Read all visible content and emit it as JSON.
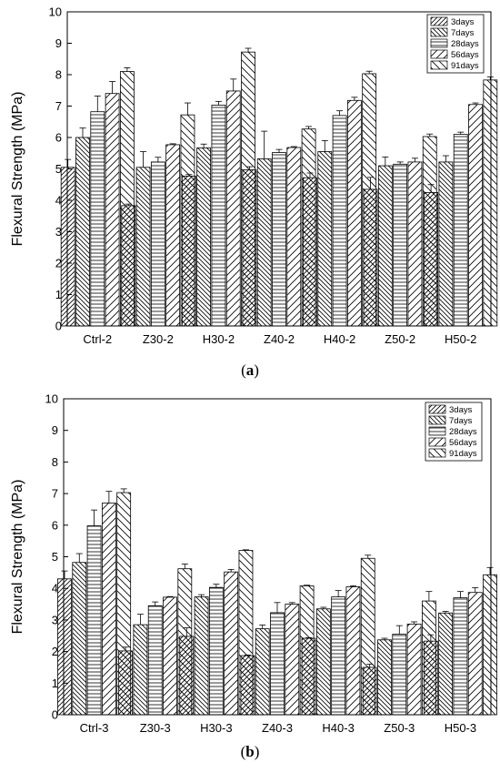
{
  "chart_data": [
    {
      "type": "bar",
      "panel_label": "a",
      "ylabel": "Flexural Strength (MPa)",
      "xlabel": "",
      "ylim": [
        0,
        10
      ],
      "yticks": [
        0,
        1,
        2,
        3,
        4,
        5,
        6,
        7,
        8,
        9,
        10
      ],
      "grid": false,
      "legend_position": "top-right",
      "categories": [
        "Ctrl-2",
        "Z30-2",
        "H30-2",
        "Z40-2",
        "H40-2",
        "Z50-2",
        "H50-2"
      ],
      "series": [
        {
          "name": "3days",
          "values": [
            5.05,
            3.83,
            4.77,
            4.97,
            4.72,
            4.35,
            4.25
          ],
          "errors": [
            0.25,
            0.05,
            0.05,
            0.1,
            0.15,
            0.38,
            0.25
          ]
        },
        {
          "name": "7days",
          "values": [
            6.0,
            5.05,
            5.67,
            5.32,
            5.55,
            5.1,
            5.22
          ],
          "errors": [
            0.3,
            0.5,
            0.12,
            0.88,
            0.35,
            0.28,
            0.2
          ]
        },
        {
          "name": "28days",
          "values": [
            6.82,
            5.22,
            7.03,
            5.52,
            6.7,
            5.15,
            6.1
          ],
          "errors": [
            0.5,
            0.15,
            0.12,
            0.1,
            0.15,
            0.07,
            0.07
          ]
        },
        {
          "name": "56days",
          "values": [
            7.4,
            5.77,
            7.48,
            5.68,
            7.18,
            5.22,
            7.05
          ],
          "errors": [
            0.38,
            0.03,
            0.38,
            0.03,
            0.1,
            0.12,
            0.05
          ]
        },
        {
          "name": "91days",
          "values": [
            8.1,
            6.72,
            8.72,
            6.27,
            8.03,
            6.03,
            7.83
          ],
          "errors": [
            0.12,
            0.38,
            0.12,
            0.08,
            0.08,
            0.08,
            0.1
          ]
        }
      ]
    },
    {
      "type": "bar",
      "panel_label": "b",
      "ylabel": "Flexural Strength (MPa)",
      "xlabel": "",
      "ylim": [
        0,
        10
      ],
      "yticks": [
        0,
        1,
        2,
        3,
        4,
        5,
        6,
        7,
        8,
        9,
        10
      ],
      "grid": false,
      "legend_position": "top-right",
      "categories": [
        "Ctrl-3",
        "Z30-3",
        "H30-3",
        "Z40-3",
        "H40-3",
        "Z50-3",
        "H50-3"
      ],
      "series": [
        {
          "name": "3days",
          "values": [
            4.3,
            2.02,
            2.48,
            1.87,
            2.42,
            1.5,
            2.33
          ],
          "errors": [
            0.25,
            0.12,
            0.27,
            0.02,
            0.02,
            0.1,
            0.2
          ]
        },
        {
          "name": "7days",
          "values": [
            4.82,
            2.85,
            3.73,
            2.72,
            3.35,
            2.37,
            3.22
          ],
          "errors": [
            0.28,
            0.33,
            0.07,
            0.12,
            0.05,
            0.05,
            0.05
          ]
        },
        {
          "name": "28days",
          "values": [
            5.98,
            3.45,
            4.03,
            3.23,
            3.73,
            2.55,
            3.7
          ],
          "errors": [
            0.5,
            0.12,
            0.1,
            0.32,
            0.2,
            0.27,
            0.2
          ]
        },
        {
          "name": "56days",
          "values": [
            6.7,
            3.72,
            4.52,
            3.5,
            4.05,
            2.87,
            3.87
          ],
          "errors": [
            0.37,
            0.02,
            0.08,
            0.05,
            0.03,
            0.07,
            0.15
          ]
        },
        {
          "name": "91days",
          "values": [
            7.03,
            4.62,
            5.2,
            4.08,
            4.95,
            3.6,
            4.43
          ],
          "errors": [
            0.12,
            0.15,
            0.02,
            0.02,
            0.1,
            0.3,
            0.23
          ]
        }
      ]
    }
  ]
}
